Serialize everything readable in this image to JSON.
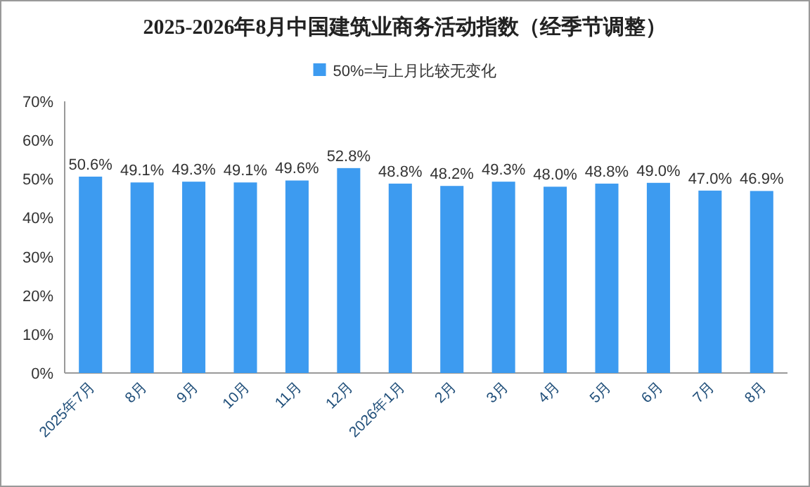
{
  "chart_data": {
    "type": "bar",
    "title": "2025-2026年8月中国建筑业商务活动指数（经季节调整）",
    "categories": [
      "2025年7月",
      "8月",
      "9月",
      "10月",
      "11月",
      "12月",
      "2026年1月",
      "2月",
      "3月",
      "4月",
      "5月",
      "6月",
      "7月",
      "8月"
    ],
    "series": [
      {
        "name": "50%=与上月比较无变化",
        "color": "#3d9bf0",
        "values": [
          50.6,
          49.1,
          49.3,
          49.1,
          49.6,
          52.8,
          48.8,
          48.2,
          49.3,
          48.0,
          48.8,
          49.0,
          47.0,
          46.9
        ],
        "value_labels": [
          "50.6%",
          "49.1%",
          "49.3%",
          "49.1%",
          "49.6%",
          "52.8%",
          "48.8%",
          "48.2%",
          "49.3%",
          "48.0%",
          "48.8%",
          "49.0%",
          "47.0%",
          "46.9%"
        ]
      }
    ],
    "ylim": [
      0,
      70
    ],
    "yticks": [
      {
        "value": 0,
        "label": "0%"
      },
      {
        "value": 10,
        "label": "10%"
      },
      {
        "value": 20,
        "label": "20%"
      },
      {
        "value": 30,
        "label": "30%"
      },
      {
        "value": 40,
        "label": "40%"
      },
      {
        "value": 50,
        "label": "50%"
      },
      {
        "value": 60,
        "label": "60%"
      },
      {
        "value": 70,
        "label": "70%"
      }
    ],
    "legend": "top",
    "grid": false
  }
}
